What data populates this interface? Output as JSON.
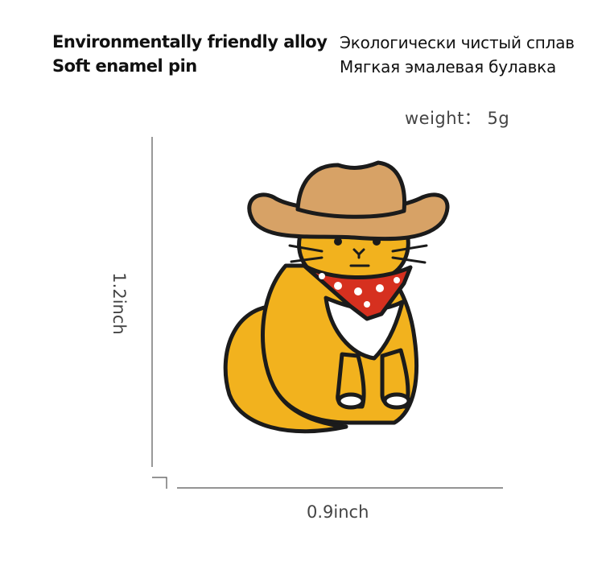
{
  "features": {
    "en_line1": "Environmentally friendly alloy",
    "en_line2": "Soft enamel pin",
    "ru_line1": "Экологически чистый сплав",
    "ru_line2": "Мягкая эмалевая булавка"
  },
  "specs": {
    "weight": "weight： 5g",
    "height": "1.2inch",
    "width": "0.9inch"
  },
  "colors": {
    "fur": "#f2b21e",
    "hat": "#d7a266",
    "bandana": "#d6301f",
    "outline": "#1b1b1b",
    "chest": "#ffffff"
  }
}
